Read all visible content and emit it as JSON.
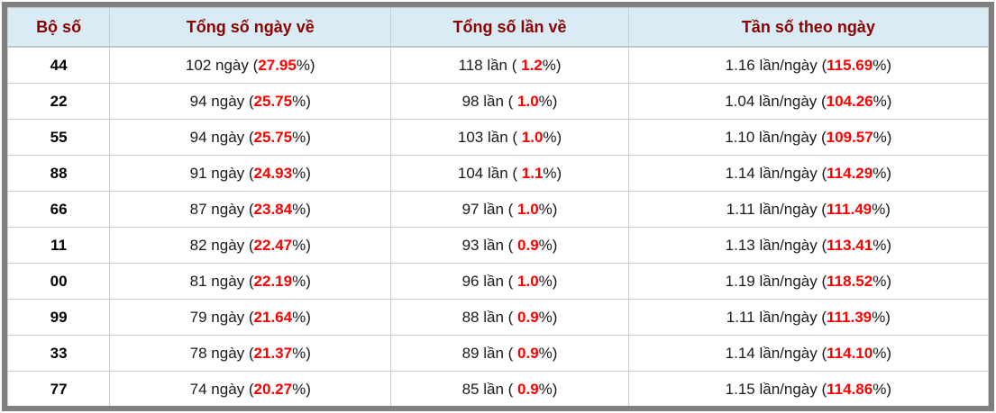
{
  "table": {
    "headers": [
      "Bộ số",
      "Tổng số ngày về",
      "Tổng số lần về",
      "Tần số theo ngày"
    ],
    "rows": [
      {
        "pair": "44",
        "days": {
          "prefix": "102 ngày (",
          "value": "27.95",
          "suffix": "%)"
        },
        "times": {
          "prefix": "118 lần ( ",
          "value": "1.2",
          "suffix": "%)"
        },
        "freq": {
          "prefix": "1.16 lần/ngày (",
          "value": "115.69",
          "suffix": "%)"
        }
      },
      {
        "pair": "22",
        "days": {
          "prefix": "94 ngày (",
          "value": "25.75",
          "suffix": "%)"
        },
        "times": {
          "prefix": "98 lần ( ",
          "value": "1.0",
          "suffix": "%)"
        },
        "freq": {
          "prefix": "1.04 lần/ngày (",
          "value": "104.26",
          "suffix": "%)"
        }
      },
      {
        "pair": "55",
        "days": {
          "prefix": "94 ngày (",
          "value": "25.75",
          "suffix": "%)"
        },
        "times": {
          "prefix": "103 lần ( ",
          "value": "1.0",
          "suffix": "%)"
        },
        "freq": {
          "prefix": "1.10 lần/ngày (",
          "value": "109.57",
          "suffix": "%)"
        }
      },
      {
        "pair": "88",
        "days": {
          "prefix": "91 ngày (",
          "value": "24.93",
          "suffix": "%)"
        },
        "times": {
          "prefix": "104 lần ( ",
          "value": "1.1",
          "suffix": "%)"
        },
        "freq": {
          "prefix": "1.14 lần/ngày (",
          "value": "114.29",
          "suffix": "%)"
        }
      },
      {
        "pair": "66",
        "days": {
          "prefix": "87 ngày (",
          "value": "23.84",
          "suffix": "%)"
        },
        "times": {
          "prefix": "97 lần ( ",
          "value": "1.0",
          "suffix": "%)"
        },
        "freq": {
          "prefix": "1.11 lần/ngày (",
          "value": "111.49",
          "suffix": "%)"
        }
      },
      {
        "pair": "11",
        "days": {
          "prefix": "82 ngày (",
          "value": "22.47",
          "suffix": "%)"
        },
        "times": {
          "prefix": "93 lần ( ",
          "value": "0.9",
          "suffix": "%)"
        },
        "freq": {
          "prefix": "1.13 lần/ngày (",
          "value": "113.41",
          "suffix": "%)"
        }
      },
      {
        "pair": "00",
        "days": {
          "prefix": "81 ngày (",
          "value": "22.19",
          "suffix": "%)"
        },
        "times": {
          "prefix": "96 lần ( ",
          "value": "1.0",
          "suffix": "%)"
        },
        "freq": {
          "prefix": "1.19 lần/ngày (",
          "value": "118.52",
          "suffix": "%)"
        }
      },
      {
        "pair": "99",
        "days": {
          "prefix": "79 ngày (",
          "value": "21.64",
          "suffix": "%)"
        },
        "times": {
          "prefix": "88 lần ( ",
          "value": "0.9",
          "suffix": "%)"
        },
        "freq": {
          "prefix": "1.11 lần/ngày (",
          "value": "111.39",
          "suffix": "%)"
        }
      },
      {
        "pair": "33",
        "days": {
          "prefix": "78 ngày (",
          "value": "21.37",
          "suffix": "%)"
        },
        "times": {
          "prefix": "89 lần ( ",
          "value": "0.9",
          "suffix": "%)"
        },
        "freq": {
          "prefix": "1.14 lần/ngày (",
          "value": "114.10",
          "suffix": "%)"
        }
      },
      {
        "pair": "77",
        "days": {
          "prefix": "74 ngày (",
          "value": "20.27",
          "suffix": "%)"
        },
        "times": {
          "prefix": "85 lần ( ",
          "value": "0.9",
          "suffix": "%)"
        },
        "freq": {
          "prefix": "1.15 lần/ngày (",
          "value": "114.86",
          "suffix": "%)"
        }
      }
    ]
  },
  "colors": {
    "header_text": "#8b0000",
    "header_background": "#d9ecf5",
    "highlight_value": "#ff0000",
    "outer_border": "#7f7f7f",
    "grid_line": "#cccccc",
    "body_text": "#1a1a1a"
  }
}
